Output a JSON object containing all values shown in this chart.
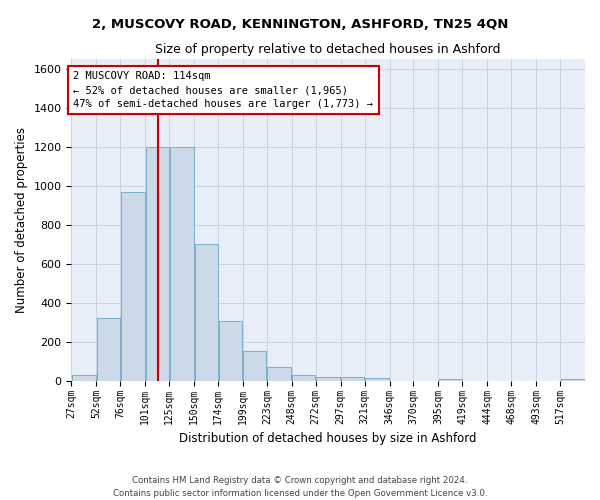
{
  "title": "2, MUSCOVY ROAD, KENNINGTON, ASHFORD, TN25 4QN",
  "subtitle": "Size of property relative to detached houses in Ashford",
  "xlabel": "Distribution of detached houses by size in Ashford",
  "ylabel": "Number of detached properties",
  "bar_color": "#ccd9e8",
  "bar_edge_color": "#7aaec8",
  "grid_color": "#c8d4e4",
  "background_color": "#e8eef8",
  "bin_labels": [
    "27sqm",
    "52sqm",
    "76sqm",
    "101sqm",
    "125sqm",
    "150sqm",
    "174sqm",
    "199sqm",
    "223sqm",
    "248sqm",
    "272sqm",
    "297sqm",
    "321sqm",
    "346sqm",
    "370sqm",
    "395sqm",
    "419sqm",
    "444sqm",
    "468sqm",
    "493sqm",
    "517sqm"
  ],
  "bar_heights": [
    30,
    320,
    970,
    1200,
    1200,
    700,
    305,
    155,
    70,
    30,
    20,
    18,
    12,
    0,
    0,
    10,
    0,
    0,
    0,
    0,
    10
  ],
  "ylim": [
    0,
    1650
  ],
  "yticks": [
    0,
    200,
    400,
    600,
    800,
    1000,
    1200,
    1400,
    1600
  ],
  "red_line_x": 114,
  "annotation_text": "2 MUSCOVY ROAD: 114sqm\n← 52% of detached houses are smaller (1,965)\n47% of semi-detached houses are larger (1,773) →",
  "annotation_box_color": "#ffffff",
  "annotation_box_edge": "#cc0000",
  "red_line_color": "#cc0000",
  "footer_line1": "Contains HM Land Registry data © Crown copyright and database right 2024.",
  "footer_line2": "Contains public sector information licensed under the Open Government Licence v3.0.",
  "bin_edges": [
    27,
    52,
    76,
    101,
    125,
    150,
    174,
    199,
    223,
    248,
    272,
    297,
    321,
    346,
    370,
    395,
    419,
    444,
    468,
    493,
    517,
    542
  ]
}
